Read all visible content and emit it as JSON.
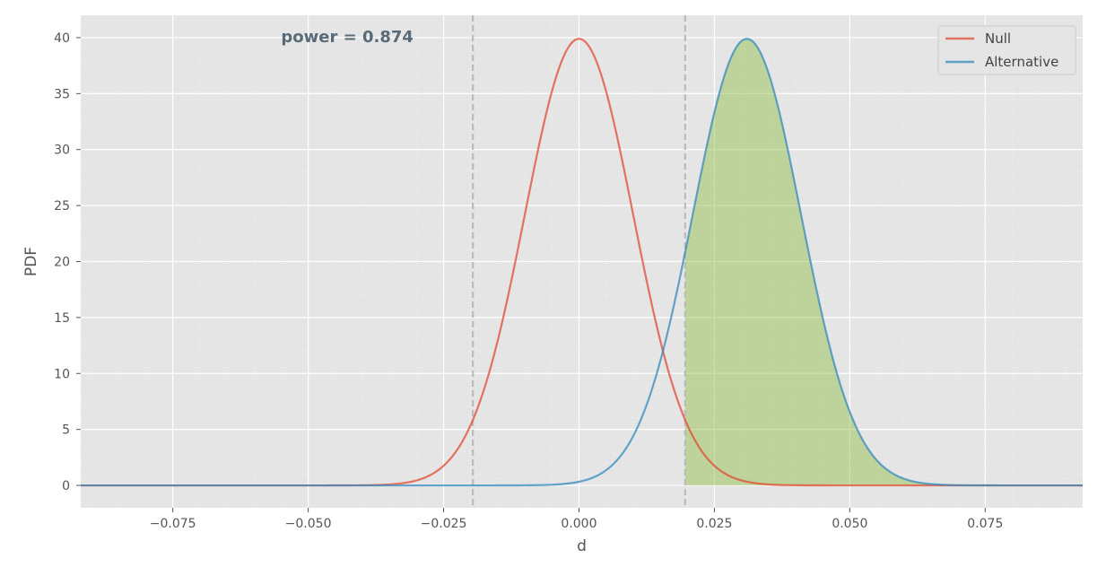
{
  "chart_data": {
    "type": "line",
    "title": "",
    "xlabel": "d",
    "ylabel": "PDF",
    "xlim": [
      -0.092,
      0.093
    ],
    "ylim": [
      -2,
      42
    ],
    "x_ticks": [
      -0.075,
      -0.05,
      -0.025,
      0.0,
      0.025,
      0.05,
      0.075
    ],
    "x_tick_labels": [
      "−0.075",
      "−0.050",
      "−0.025",
      "0.000",
      "0.025",
      "0.050",
      "0.075"
    ],
    "y_ticks": [
      0,
      5,
      10,
      15,
      20,
      25,
      30,
      35,
      40
    ],
    "y_tick_labels": [
      "0",
      "5",
      "10",
      "15",
      "20",
      "25",
      "30",
      "35",
      "40"
    ],
    "grid": true,
    "legend_position": "top-right",
    "series": [
      {
        "name": "Null",
        "distribution": "normal",
        "mean": 0.0,
        "std": 0.01,
        "x_range": [
          -0.092,
          0.093
        ],
        "color": "#E24A33"
      },
      {
        "name": "Alternative",
        "distribution": "normal",
        "mean": 0.031,
        "std": 0.01,
        "x_range": [
          -0.092,
          0.093
        ],
        "color": "#348ABD"
      }
    ],
    "critical_values": [
      -0.0196,
      0.0196
    ],
    "critical_line_color": "#bbbbbb",
    "shaded_region": {
      "series": "Alternative",
      "from": 0.0196,
      "to": 0.093,
      "color": "#8EBA42"
    },
    "annotations": [
      {
        "text": "power = 0.874",
        "x": -0.055,
        "y": 40
      }
    ],
    "background_color": "#E5E5E5"
  }
}
